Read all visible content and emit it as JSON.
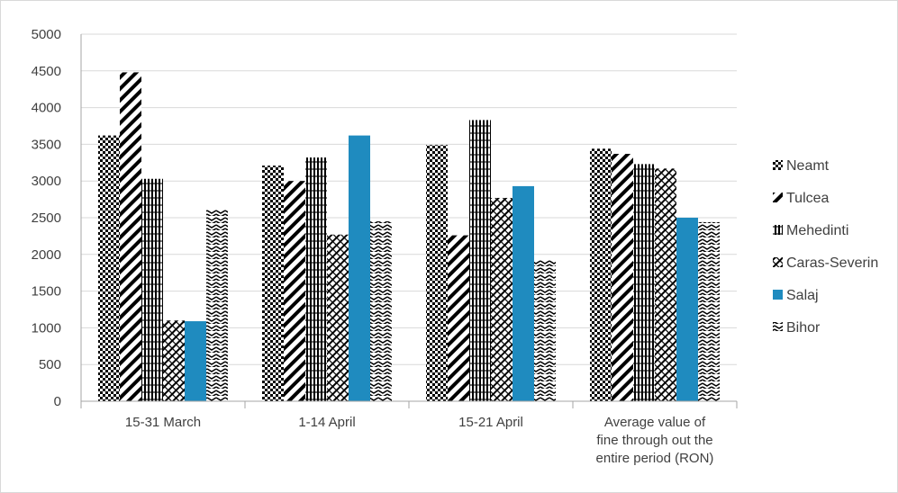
{
  "chart_data": {
    "type": "bar",
    "title": "",
    "xlabel": "",
    "ylabel": "",
    "ylim": [
      0,
      5000
    ],
    "yticks": [
      0,
      500,
      1000,
      1500,
      2000,
      2500,
      3000,
      3500,
      4000,
      4500,
      5000
    ],
    "grid": true,
    "legend_position": "right",
    "categories": [
      [
        "15-31 March"
      ],
      [
        "1-14 April"
      ],
      [
        "15-21 April"
      ],
      [
        "Average value of",
        "fine through out the",
        "entire period (RON)"
      ]
    ],
    "series": [
      {
        "name": "Neamt",
        "pattern": "checker",
        "color": "#000000",
        "values": [
          3620,
          3210,
          3490,
          3440
        ]
      },
      {
        "name": "Tulcea",
        "pattern": "diagonal",
        "color": "#000000",
        "values": [
          4480,
          3000,
          2260,
          3370
        ]
      },
      {
        "name": "Mehedinti",
        "pattern": "plaid",
        "color": "#000000",
        "values": [
          3030,
          3320,
          3830,
          3230
        ]
      },
      {
        "name": "Caras-Severin",
        "pattern": "crosshatch",
        "color": "#000000",
        "values": [
          1100,
          2270,
          2770,
          3170
        ]
      },
      {
        "name": "Salaj",
        "pattern": "solid",
        "color": "#1f8bbf",
        "values": [
          1090,
          3620,
          2930,
          2500
        ]
      },
      {
        "name": "Bihor",
        "pattern": "wave",
        "color": "#000000",
        "values": [
          2610,
          2450,
          1920,
          2440
        ]
      }
    ]
  }
}
